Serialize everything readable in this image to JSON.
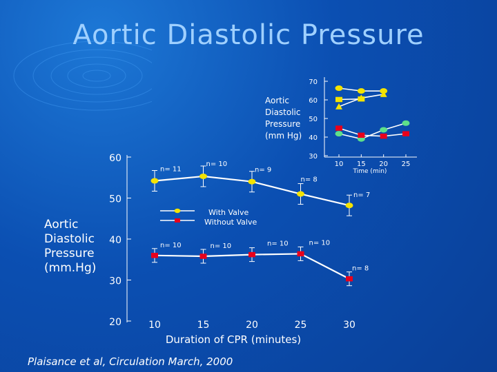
{
  "title": "Aortic Diastolic Pressure",
  "citation": "Plaisance et al, Circulation March, 2000",
  "chart_data": [
    {
      "type": "line",
      "title": "",
      "xlabel": "Duration of CPR  (minutes)",
      "ylabel": "Aortic Diastolic Pressure (mm.Hg)",
      "x": [
        10,
        15,
        20,
        25,
        30
      ],
      "x_ticks": [
        "10",
        "15",
        "20",
        "25",
        "30"
      ],
      "y_ticks": [
        "60",
        "50",
        "40",
        "30",
        "20"
      ],
      "ylim": [
        20,
        60
      ],
      "legend_position": "center",
      "series": [
        {
          "name": "With Valve",
          "color": "#f4e300",
          "values": [
            54.2,
            55.3,
            54.0,
            51.0,
            48.2
          ],
          "n_labels": [
            "n= 11",
            "n= 10",
            "n= 9",
            "n= 8",
            "n= 7"
          ]
        },
        {
          "name": "Without Valve",
          "color": "#e8001c",
          "values": [
            36.0,
            35.8,
            36.2,
            36.4,
            30.3
          ],
          "n_labels": [
            "n= 10",
            "n= 10",
            "n= 10",
            "n= 10",
            "n= 8"
          ]
        }
      ]
    },
    {
      "type": "line",
      "title": "",
      "xlabel": "Time (min)",
      "ylabel": "Aortic Diastolic Pressure (mm Hg)",
      "x": [
        10,
        15,
        20,
        25
      ],
      "x_ticks": [
        "10",
        "15",
        "20",
        "25"
      ],
      "y_ticks": [
        "70",
        "60",
        "50",
        "40",
        "30"
      ],
      "ylim": [
        30,
        70
      ],
      "series": [
        {
          "marker": "circle",
          "color": "#f4e300",
          "x": [
            10,
            15,
            20
          ],
          "values": [
            66.3,
            64.8,
            64.8
          ]
        },
        {
          "marker": "triangle",
          "color": "#f4e300",
          "x": [
            10,
            15,
            20
          ],
          "values": [
            56.4,
            61.0,
            63.0
          ]
        },
        {
          "marker": "square",
          "color": "#f4e300",
          "x": [
            10,
            15
          ],
          "values": [
            60.2,
            60.5
          ]
        },
        {
          "marker": "circle",
          "color": "#5ee08a",
          "x": [
            10,
            15,
            20,
            25
          ],
          "values": [
            41.8,
            39.0,
            43.9,
            47.5
          ]
        },
        {
          "marker": "square",
          "color": "#e8001c",
          "x": [
            10,
            15,
            20,
            25
          ],
          "values": [
            44.8,
            41.0,
            40.5,
            41.8
          ]
        }
      ]
    }
  ]
}
